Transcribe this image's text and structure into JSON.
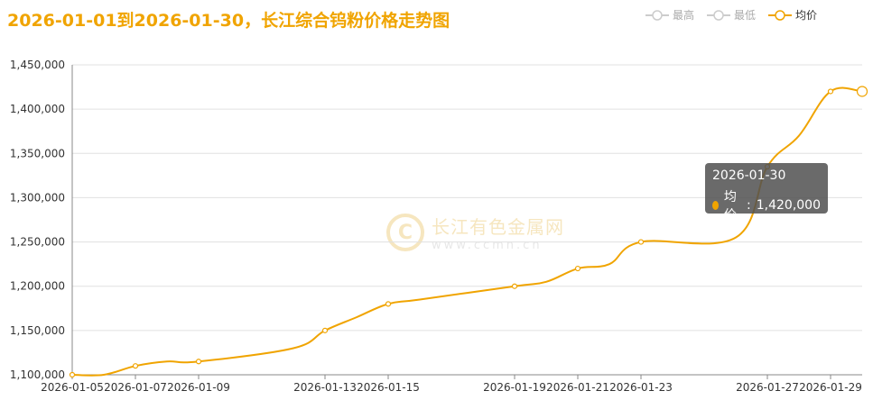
{
  "title": "2026-01-01到2026-01-30，长江综合钨粉价格走势图",
  "legend": [
    {
      "label": "最高",
      "color": "#cccccc",
      "active": false
    },
    {
      "label": "最低",
      "color": "#cccccc",
      "active": false
    },
    {
      "label": "均价",
      "color": "#f0a400",
      "active": true
    }
  ],
  "tooltip": {
    "date": "2026-01-30",
    "series": "均价",
    "value": "1,420,000"
  },
  "watermark": {
    "name": "长江有色金属网",
    "url": "www.ccmn.cn"
  },
  "chart_data": {
    "type": "line",
    "title": "2026-01-01到2026-01-30，长江综合钨粉价格走势图",
    "xlabel": "",
    "ylabel": "",
    "ylim": [
      1100000,
      1450000
    ],
    "yticks": [
      "1,100,000",
      "1,150,000",
      "1,200,000",
      "1,250,000",
      "1,300,000",
      "1,350,000",
      "1,400,000",
      "1,450,000"
    ],
    "xticks": [
      "2026-01-05",
      "2026-01-07",
      "2026-01-09",
      "2026-01-13",
      "2026-01-15",
      "2026-01-19",
      "2026-01-21",
      "2026-01-23",
      "2026-01-27",
      "2026-01-29"
    ],
    "grid": true,
    "legend_position": "top-right",
    "x": [
      "2026-01-05",
      "2026-01-06",
      "2026-01-07",
      "2026-01-08",
      "2026-01-09",
      "2026-01-12",
      "2026-01-13",
      "2026-01-14",
      "2026-01-15",
      "2026-01-16",
      "2026-01-19",
      "2026-01-20",
      "2026-01-21",
      "2026-01-22",
      "2026-01-23",
      "2026-01-26",
      "2026-01-27",
      "2026-01-28",
      "2026-01-29",
      "2026-01-30"
    ],
    "series": [
      {
        "name": "均价",
        "color": "#f0a400",
        "values": [
          1100000,
          1100000,
          1110000,
          1115000,
          1115000,
          1130000,
          1150000,
          1165000,
          1180000,
          1185000,
          1200000,
          1205000,
          1220000,
          1225000,
          1250000,
          1255000,
          1335000,
          1370000,
          1420000,
          1420000
        ]
      }
    ]
  }
}
